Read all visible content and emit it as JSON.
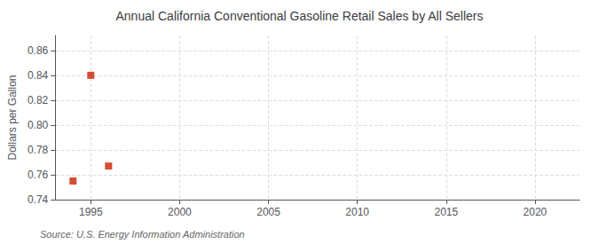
{
  "chart_data": {
    "type": "scatter",
    "title": "Annual California Conventional Gasoline Retail Sales by All Sellers",
    "ylabel": "Dollars per Gallon",
    "annotations": [
      "Source: U.S. Energy Information Administration"
    ],
    "x": [
      1994,
      1995,
      1996
    ],
    "values": [
      0.755,
      0.84,
      0.767
    ],
    "color": "#cc2200",
    "marker": "square",
    "xlim": [
      1993,
      2022.5
    ],
    "ylim": [
      0.74,
      0.872
    ],
    "xticks": [
      1995,
      2000,
      2005,
      2010,
      2015,
      2020
    ],
    "yticks": [
      0.74,
      0.76,
      0.78,
      {
        "value": 0.8,
        "label": "0.80"
      },
      0.82,
      0.84,
      0.86
    ],
    "grid": true
  }
}
